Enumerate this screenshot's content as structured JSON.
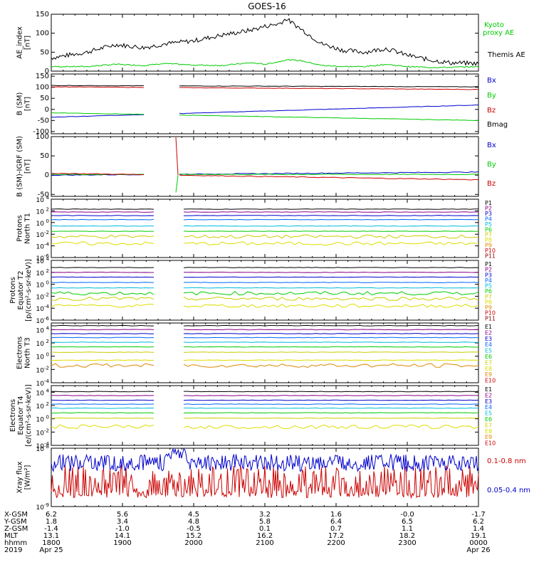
{
  "title": "GOES-16",
  "colors": {
    "black": "#000000",
    "green": "#00cc00",
    "blue": "#0000cc",
    "red": "#cc0000",
    "purple": "#880088",
    "cyan": "#00bbdd",
    "yellow": "#cccc00",
    "orange": "#dd8800",
    "darkred": "#880000"
  },
  "x_axis": {
    "rows": [
      {
        "label": "X-GSM",
        "values": [
          "6.2",
          "5.6",
          "4.5",
          "3.2",
          "1.6",
          "-0.0",
          "-1.7"
        ]
      },
      {
        "label": "Y-GSM",
        "values": [
          "1.8",
          "3.4",
          "4.8",
          "5.8",
          "6.4",
          "6.5",
          "6.2"
        ]
      },
      {
        "label": "Z-GSM",
        "values": [
          "-1.4",
          "-1.0",
          "-0.5",
          "0.1",
          "0.7",
          "1.1",
          "1.4"
        ]
      },
      {
        "label": "MLT",
        "values": [
          "13.1",
          "14.1",
          "15.2",
          "16.2",
          "17.2",
          "18.2",
          "19.1"
        ]
      },
      {
        "label": "hhmm",
        "values": [
          "1800",
          "1900",
          "2000",
          "2100",
          "2200",
          "2300",
          "0000"
        ]
      },
      {
        "label": "2019",
        "values": [
          "Apr 25",
          "",
          "",
          "",
          "",
          "",
          "Apr 26"
        ]
      }
    ]
  },
  "chart_data": [
    {
      "type": "line",
      "ylabel": [
        "AE_index",
        "[nT]"
      ],
      "yticks": [
        "0",
        "50",
        "100",
        "150"
      ],
      "ylim": [
        0,
        150
      ],
      "series": [
        {
          "name": "Kyoto proxy AE",
          "color": "#00cc00",
          "label_lines": [
            "Kyoto",
            "proxy AE"
          ]
        },
        {
          "name": "Themis AE",
          "color": "#000000",
          "label_lines": [
            "Themis AE"
          ]
        }
      ],
      "x_hours": [
        18.0,
        18.5,
        18.9,
        19.3,
        19.6,
        20.0,
        20.4,
        20.8,
        21.0,
        21.2,
        21.3,
        21.5,
        21.8,
        22.1,
        22.4,
        22.7,
        23.0,
        23.3,
        23.6,
        24.0
      ],
      "themis_ae": [
        35,
        50,
        70,
        62,
        72,
        80,
        95,
        108,
        118,
        125,
        138,
        112,
        72,
        55,
        50,
        60,
        42,
        30,
        22,
        20
      ],
      "kyoto_ae": [
        12,
        12,
        18,
        15,
        20,
        16,
        15,
        22,
        18,
        25,
        30,
        28,
        15,
        12,
        12,
        18,
        12,
        10,
        10,
        12
      ]
    },
    {
      "type": "line",
      "ylabel": [
        "B (SM)",
        "[nT]"
      ],
      "yticks": [
        "-100",
        "-50",
        "0",
        "50",
        "100",
        "150"
      ],
      "ylim": [
        -110,
        160
      ],
      "data_gap": [
        "19:20",
        "19:45"
      ],
      "series": [
        {
          "name": "Bx",
          "color": "#0000cc",
          "start": -35,
          "end": 20
        },
        {
          "name": "By",
          "color": "#00cc00",
          "start": -15,
          "end": -50
        },
        {
          "name": "Bz",
          "color": "#cc0000",
          "start": 102,
          "end": 90
        },
        {
          "name": "Bmag",
          "color": "#000000",
          "start": 108,
          "end": 102
        }
      ]
    },
    {
      "type": "line",
      "ylabel": [
        "B (SM)-IGRF (SM)",
        "[nT]"
      ],
      "yticks": [
        "-50",
        "0",
        "50",
        "100"
      ],
      "ylim": [
        -55,
        100
      ],
      "data_gap": [
        "19:20",
        "19:45"
      ],
      "series": [
        {
          "name": "Bx",
          "color": "#0000cc",
          "start": 0,
          "end": 8
        },
        {
          "name": "By",
          "color": "#00cc00",
          "start": 2,
          "end": 2
        },
        {
          "name": "Bz",
          "color": "#cc0000",
          "start": 5,
          "end": -12
        }
      ]
    },
    {
      "type": "line",
      "ylabel": [
        "Protons",
        "North T1"
      ],
      "yticks": [
        "10^-6",
        "10^-4",
        "10^-2",
        "10^0",
        "10^2",
        "10^4"
      ],
      "ylim": [
        -6,
        4
      ],
      "log_scale": true,
      "data_gap": [
        "19:30",
        "19:50"
      ],
      "channels": [
        "P1",
        "P2",
        "P3",
        "P4",
        "P5",
        "P6",
        "P7",
        "P8",
        "P9",
        "P10",
        "P11"
      ]
    },
    {
      "type": "line",
      "ylabel": [
        "Protons",
        "Equator T2",
        "[p/(cm²-s-sr-keV)]"
      ],
      "yticks": [
        "10^-6",
        "10^-4",
        "10^-2",
        "10^0",
        "10^2",
        "10^4"
      ],
      "ylim": [
        -6,
        4
      ],
      "log_scale": true,
      "data_gap": [
        "19:30",
        "19:50"
      ],
      "channels": [
        "P1",
        "P2",
        "P3",
        "P4",
        "P5",
        "P6",
        "P7",
        "P8",
        "P9",
        "P10",
        "P11"
      ]
    },
    {
      "type": "line",
      "ylabel": [
        "Electrons",
        "North T3"
      ],
      "yticks": [
        "10^-4",
        "10^-2",
        "10^0",
        "10^2",
        "10^4"
      ],
      "ylim": [
        -4,
        5
      ],
      "log_scale": true,
      "data_gap": [
        "19:30",
        "19:50"
      ],
      "channels": [
        "E1",
        "E2",
        "E3",
        "E4",
        "E5",
        "E6",
        "E7",
        "E8",
        "E9",
        "E10"
      ]
    },
    {
      "type": "line",
      "ylabel": [
        "Electrons",
        "Equator T4",
        "[e/(cm²-s-sr-keV)]"
      ],
      "yticks": [
        "10^-4",
        "10^-2",
        "10^0",
        "10^2",
        "10^4"
      ],
      "ylim": [
        -4,
        5
      ],
      "log_scale": true,
      "data_gap": [
        "19:30",
        "19:50"
      ],
      "channels": [
        "E1",
        "E2",
        "E3",
        "E4",
        "E5",
        "E6",
        "E7",
        "E8",
        "E9",
        "E10"
      ]
    },
    {
      "type": "line",
      "ylabel": [
        "Xray flux",
        "[W/m²]"
      ],
      "yticks": [
        "10^-9",
        "10^-8"
      ],
      "ylim": [
        -9,
        -8
      ],
      "log_scale": true,
      "series": [
        {
          "name": "0.1-0.8 nm",
          "color": "#cc0000"
        },
        {
          "name": "0.05-0.4 nm",
          "color": "#0000cc"
        }
      ]
    }
  ]
}
